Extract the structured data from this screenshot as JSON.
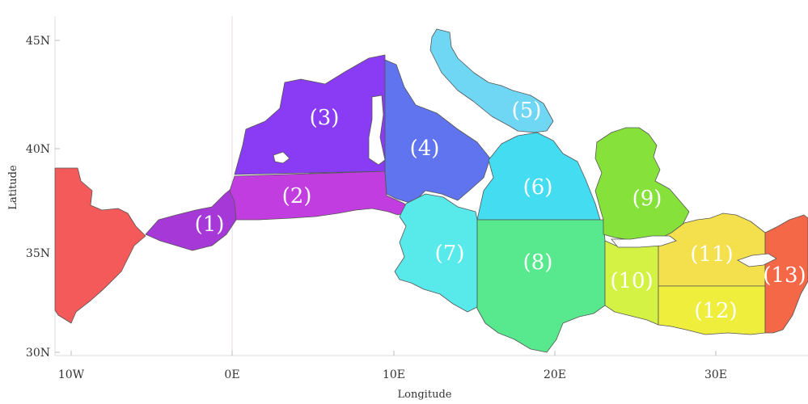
{
  "axes": {
    "xlabel": "Longitude",
    "ylabel": "Latitude",
    "xticks": [
      "10W",
      "0E",
      "10E",
      "20E",
      "30E"
    ],
    "yticks": [
      "45N",
      "40N",
      "35N",
      "30N"
    ]
  },
  "regions": [
    {
      "id": 1,
      "label": "(1)",
      "color": "#a638d8"
    },
    {
      "id": 2,
      "label": "(2)",
      "color": "#c23de0"
    },
    {
      "id": 3,
      "label": "(3)",
      "color": "#8a3cf4"
    },
    {
      "id": 4,
      "label": "(4)",
      "color": "#5f74ee"
    },
    {
      "id": 5,
      "label": "(5)",
      "color": "#6fd6f4"
    },
    {
      "id": 6,
      "label": "(6)",
      "color": "#44dcf0"
    },
    {
      "id": 7,
      "label": "(7)",
      "color": "#58eaea"
    },
    {
      "id": 8,
      "label": "(8)",
      "color": "#58e88e"
    },
    {
      "id": 9,
      "label": "(9)",
      "color": "#86e23a"
    },
    {
      "id": 10,
      "label": "(10)",
      "color": "#d4f244"
    },
    {
      "id": 11,
      "label": "(11)",
      "color": "#f4e04c"
    },
    {
      "id": 12,
      "label": "(12)",
      "color": "#f0ee3c"
    },
    {
      "id": 13,
      "label": "(13)",
      "color": "#f46848"
    },
    {
      "id": 0,
      "label": "",
      "color": "#f45a5a"
    }
  ]
}
